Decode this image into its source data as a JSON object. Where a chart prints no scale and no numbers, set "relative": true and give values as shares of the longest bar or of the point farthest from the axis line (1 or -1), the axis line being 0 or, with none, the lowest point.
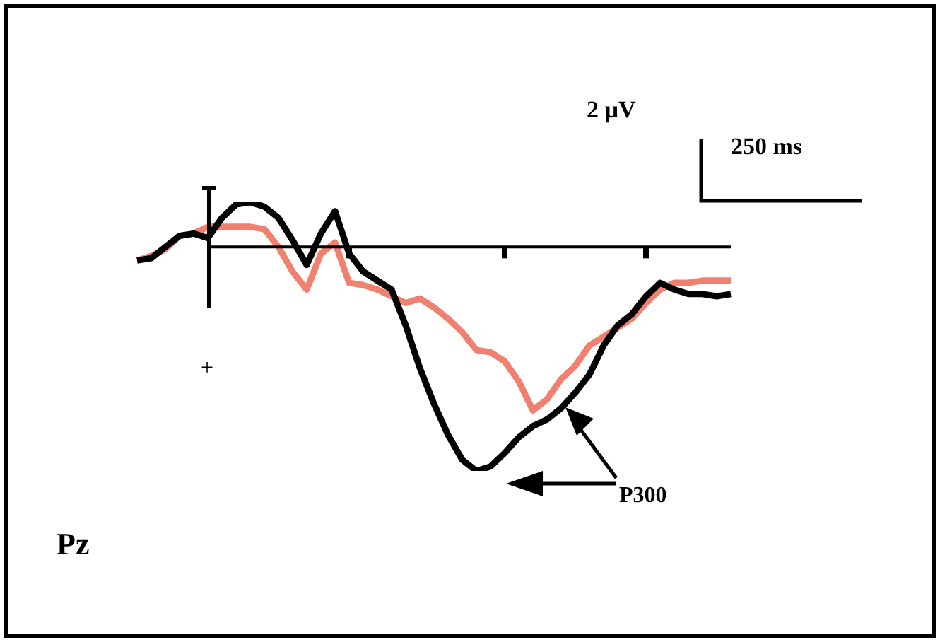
{
  "chart_data": {
    "type": "line",
    "relative": true,
    "categories": [
      null,
      null,
      null,
      null,
      null,
      null,
      null,
      null,
      null,
      null,
      null,
      null,
      null,
      null,
      null,
      null,
      null,
      null,
      null,
      null,
      null,
      null,
      null,
      null,
      null,
      null,
      null,
      null,
      null,
      null,
      null,
      null,
      null,
      null,
      null,
      null,
      null,
      null,
      null,
      null,
      null,
      null,
      null
    ],
    "series": [
      {
        "color": "#000000",
        "values": [
          -0.06,
          -0.05,
          0,
          0.05,
          0.06,
          0.04,
          0.13,
          0.19,
          0.2,
          0.18,
          0.13,
          0.03,
          -0.08,
          0.06,
          0.16,
          -0.03,
          -0.11,
          -0.15,
          -0.19,
          -0.35,
          -0.54,
          -0.7,
          -0.84,
          -0.95,
          -1,
          -0.98,
          -0.92,
          -0.85,
          -0.8,
          -0.77,
          -0.72,
          -0.65,
          -0.57,
          -0.44,
          -0.35,
          -0.3,
          -0.22,
          -0.16,
          -0.19,
          -0.21,
          -0.21,
          -0.22,
          -0.21
        ]
      },
      {
        "color": "#f08070",
        "values": [
          -0.06,
          -0.04,
          -0.01,
          0.05,
          0.06,
          0.09,
          0.09,
          0.09,
          0.09,
          0.08,
          0,
          -0.11,
          -0.19,
          -0.03,
          0.02,
          -0.16,
          -0.17,
          -0.19,
          -0.22,
          -0.25,
          -0.23,
          -0.27,
          -0.32,
          -0.38,
          -0.46,
          -0.47,
          -0.51,
          -0.6,
          -0.73,
          -0.68,
          -0.59,
          -0.53,
          -0.44,
          -0.4,
          -0.36,
          -0.32,
          -0.25,
          -0.19,
          -0.16,
          -0.16,
          -0.15,
          -0.15,
          -0.15
        ]
      }
    ],
    "ref_lines": [
      {
        "axis": "y",
        "value": 0
      }
    ],
    "annotations": [
      "2 µV",
      "250 ms",
      "+",
      "P300",
      "Pz"
    ],
    "legend": false,
    "tick_labels": false,
    "marker": "none",
    "line_style": "solid"
  }
}
